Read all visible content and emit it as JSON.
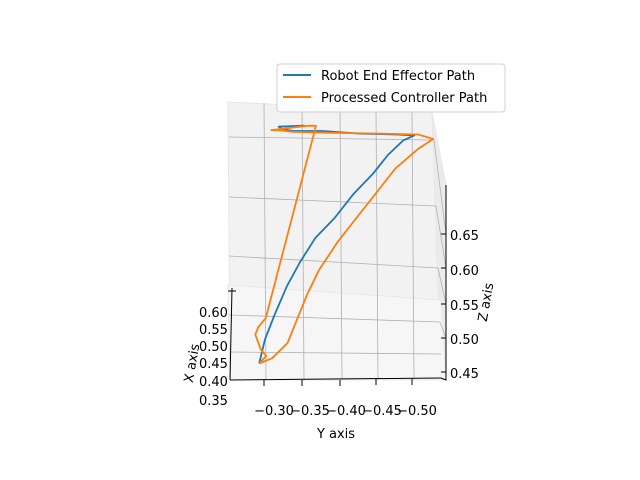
{
  "chart_data": {
    "type": "line3d",
    "title": "",
    "axes": {
      "x": {
        "label": "X axis",
        "ticks": [
          "0.60",
          "0.55",
          "0.50",
          "0.45",
          "0.40",
          "0.35"
        ]
      },
      "y": {
        "label": "Y axis",
        "ticks": [
          "−0.30",
          "−0.35",
          "−0.40",
          "−0.45",
          "−0.50"
        ]
      },
      "z": {
        "label": "Z axis",
        "ticks": [
          "0.65",
          "0.60",
          "0.55",
          "0.50",
          "0.45"
        ]
      }
    },
    "legend": {
      "placement": "top-right",
      "entries": [
        "Robot End Effector Path",
        "Processed Controller Path"
      ]
    },
    "grid": true,
    "series": [
      {
        "name": "Robot End Effector Path",
        "color": "#1f77b4",
        "path": [
          [
            0.38,
            -0.293,
            0.465
          ],
          [
            0.4,
            -0.3,
            0.49
          ],
          [
            0.42,
            -0.312,
            0.515
          ],
          [
            0.44,
            -0.328,
            0.545
          ],
          [
            0.46,
            -0.345,
            0.57
          ],
          [
            0.48,
            -0.365,
            0.595
          ],
          [
            0.5,
            -0.39,
            0.615
          ],
          [
            0.52,
            -0.415,
            0.64
          ],
          [
            0.54,
            -0.44,
            0.66
          ],
          [
            0.55,
            -0.46,
            0.68
          ],
          [
            0.56,
            -0.48,
            0.695
          ],
          [
            0.57,
            -0.495,
            0.7
          ],
          [
            0.58,
            -0.47,
            0.7
          ],
          [
            0.59,
            -0.42,
            0.7
          ],
          [
            0.6,
            -0.37,
            0.702
          ],
          [
            0.6,
            -0.33,
            0.702
          ],
          [
            0.61,
            -0.315,
            0.703
          ],
          [
            0.61,
            -0.31,
            0.706
          ],
          [
            0.61,
            -0.345,
            0.707
          ]
        ]
      },
      {
        "name": "Processed Controller Path",
        "color": "#ff7f0e",
        "path": [
          [
            0.38,
            -0.293,
            0.465
          ],
          [
            0.39,
            -0.31,
            0.47
          ],
          [
            0.41,
            -0.33,
            0.485
          ],
          [
            0.43,
            -0.34,
            0.505
          ],
          [
            0.45,
            -0.355,
            0.535
          ],
          [
            0.47,
            -0.37,
            0.56
          ],
          [
            0.49,
            -0.395,
            0.59
          ],
          [
            0.51,
            -0.42,
            0.615
          ],
          [
            0.53,
            -0.445,
            0.64
          ],
          [
            0.55,
            -0.47,
            0.665
          ],
          [
            0.57,
            -0.5,
            0.685
          ],
          [
            0.58,
            -0.52,
            0.695
          ],
          [
            0.58,
            -0.5,
            0.7
          ],
          [
            0.59,
            -0.45,
            0.7
          ],
          [
            0.6,
            -0.38,
            0.7
          ],
          [
            0.6,
            -0.33,
            0.701
          ],
          [
            0.61,
            -0.31,
            0.702
          ],
          [
            0.61,
            -0.3,
            0.702
          ],
          [
            0.61,
            -0.33,
            0.705
          ],
          [
            0.61,
            -0.35,
            0.707
          ],
          [
            0.62,
            -0.36,
            0.706
          ],
          [
            0.55,
            -0.295,
            0.5
          ],
          [
            0.55,
            -0.285,
            0.49
          ],
          [
            0.57,
            -0.28,
            0.48
          ],
          [
            0.5,
            -0.29,
            0.47
          ],
          [
            0.44,
            -0.3,
            0.468
          ],
          [
            0.38,
            -0.293,
            0.465
          ]
        ]
      }
    ]
  }
}
